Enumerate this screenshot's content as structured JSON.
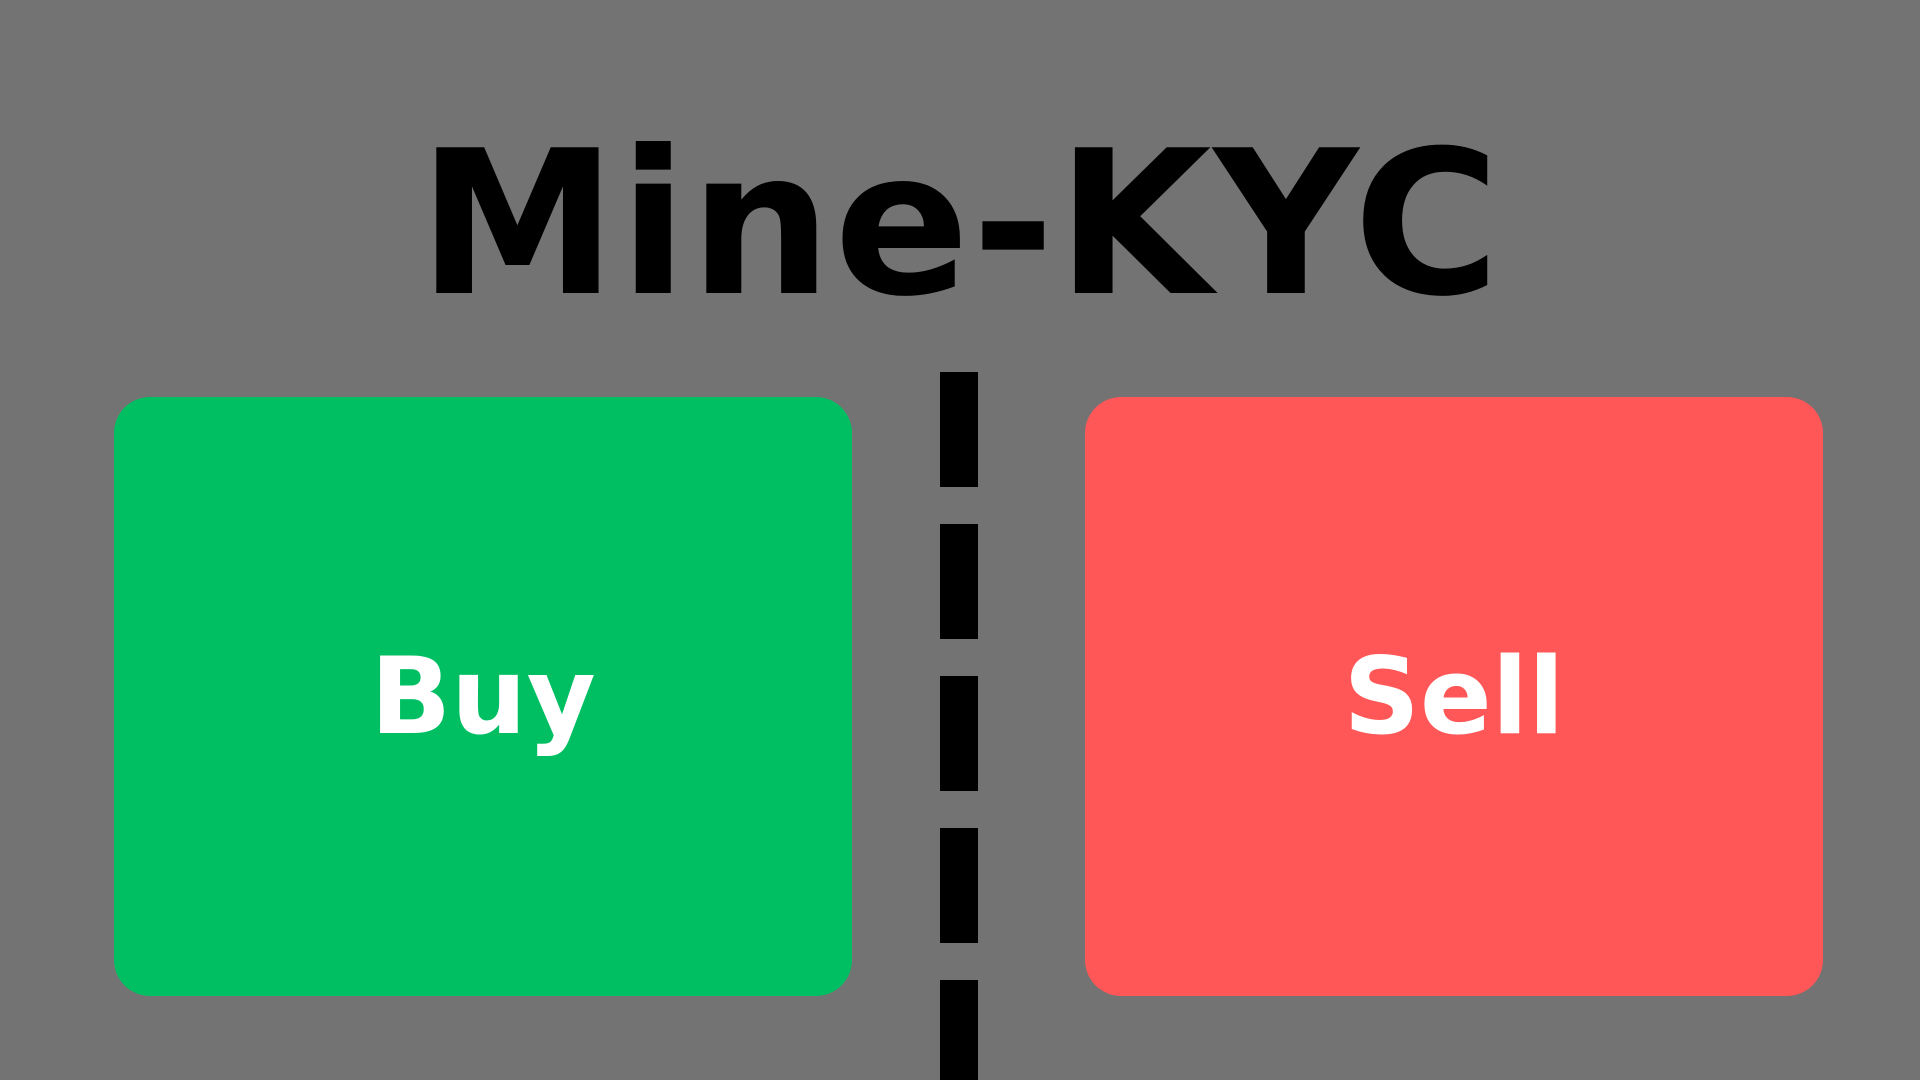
{
  "app": {
    "title": "Mine-KYC"
  },
  "actions": {
    "buy": {
      "label": "Buy",
      "color": "#00bf63"
    },
    "sell": {
      "label": "Sell",
      "color": "#ff5757"
    }
  },
  "colors": {
    "background": "#737373",
    "title": "#000000",
    "label": "#ffffff",
    "divider": "#000000"
  }
}
